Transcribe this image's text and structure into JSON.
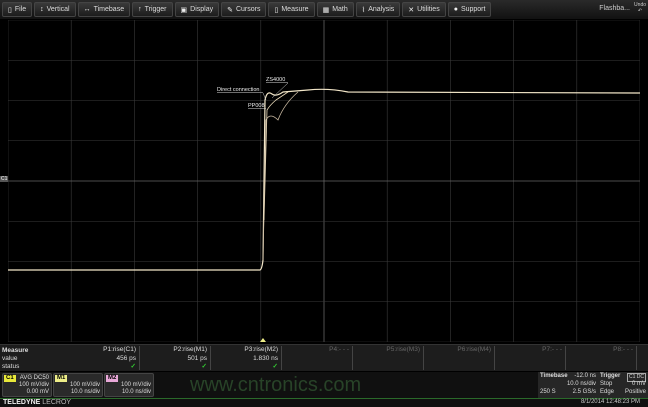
{
  "menubar": {
    "items": [
      {
        "label": "File",
        "icon": "file-icon",
        "glyph": "▯"
      },
      {
        "label": "Vertical",
        "icon": "vertical-arrows-icon",
        "glyph": "↕"
      },
      {
        "label": "Timebase",
        "icon": "horizontal-arrows-icon",
        "glyph": "↔"
      },
      {
        "label": "Trigger",
        "icon": "trigger-icon",
        "glyph": "↑"
      },
      {
        "label": "Display",
        "icon": "display-icon",
        "glyph": "▣"
      },
      {
        "label": "Cursors",
        "icon": "cursors-icon",
        "glyph": "✎"
      },
      {
        "label": "Measure",
        "icon": "measure-icon",
        "glyph": "▯"
      },
      {
        "label": "Math",
        "icon": "math-icon",
        "glyph": "▦"
      },
      {
        "label": "Analysis",
        "icon": "analysis-icon",
        "glyph": "⌇"
      },
      {
        "label": "Utilities",
        "icon": "utilities-icon",
        "glyph": "✕"
      },
      {
        "label": "Support",
        "icon": "support-icon",
        "glyph": "●"
      }
    ],
    "flashback": "Flashba...",
    "undo": "Undo"
  },
  "waveform": {
    "annotations": [
      "ZS4000",
      "Direct connection",
      "PP008"
    ],
    "channel_marker": "C1",
    "trace_color": "#f2e6c8",
    "grid_color": "#3a3a3a"
  },
  "measure": {
    "labels": [
      "Measure",
      "value",
      "status"
    ],
    "params": [
      {
        "name": "P1:rise(C1)",
        "value": "456 ps",
        "status": "✓"
      },
      {
        "name": "P2:rise(M1)",
        "value": "501 ps",
        "status": "✓"
      },
      {
        "name": "P3:rise(M2)",
        "value": "1.830 ns",
        "status": "✓"
      },
      {
        "name": "P4:- - -",
        "value": "",
        "status": ""
      },
      {
        "name": "P5:rise(M3)",
        "value": "",
        "status": ""
      },
      {
        "name": "P6:rise(M4)",
        "value": "",
        "status": ""
      },
      {
        "name": "P7:- - -",
        "value": "",
        "status": ""
      },
      {
        "name": "P8:- - -",
        "value": "",
        "status": ""
      }
    ]
  },
  "channels": [
    {
      "tag": "C1",
      "color": "#e8e83a",
      "mode": "AVG DC50",
      "scale": "100 mV/div",
      "offset": "0.00 mV"
    },
    {
      "tag": "M1",
      "color": "#eeee88",
      "mode": "",
      "scale": "100 mV/div",
      "offset": "10.0 ns/div"
    },
    {
      "tag": "M2",
      "color": "#e8a8d8",
      "mode": "",
      "scale": "100 mV/div",
      "offset": "10.0 ns/div"
    }
  ],
  "timebase": {
    "title": "Timebase",
    "delay": "-12.0 ns",
    "tdiv": "10.0 ns/div",
    "samples": "250 S",
    "rate": "2.5 GS/s"
  },
  "trigger": {
    "title": "Trigger",
    "source": "C1 DC",
    "mode": "Stop",
    "level": "0 mV",
    "type": "Edge",
    "slope": "Positive"
  },
  "footer": {
    "brand_bold": "TELEDYNE",
    "brand_light": " LECROY",
    "datetime": "8/1/2014 12:48:23 PM"
  },
  "watermark": "www.cntronics.com"
}
